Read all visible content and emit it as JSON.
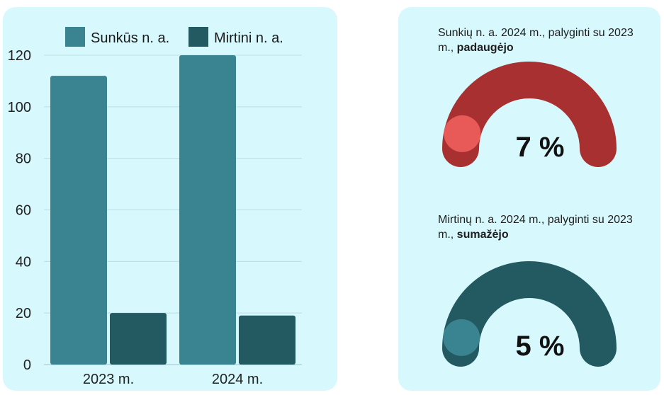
{
  "chart_data": [
    {
      "type": "bar",
      "categories": [
        "2023 m.",
        "2024 m."
      ],
      "series": [
        {
          "name": "Sunkūs n. a.",
          "values": [
            112,
            120
          ],
          "color": "#3a8390"
        },
        {
          "name": "Mirtini n. a.",
          "values": [
            20,
            19
          ],
          "color": "#235960"
        }
      ],
      "yticks": [
        "0",
        "20",
        "40",
        "60",
        "80",
        "100",
        "120"
      ],
      "ylim": [
        0,
        120
      ],
      "grid": true,
      "legend": "top"
    }
  ],
  "gauges": [
    {
      "caption_prefix": "Sunkių n. a. 2024 m., palyginti su 2023 m., ",
      "caption_bold": "padaugėjo",
      "value_label": "7 %",
      "percent": 7,
      "track_color": "#a83030",
      "knob_color": "#e85a58"
    },
    {
      "caption_prefix": "Mirtinų n. a. 2024 m., palyginti su 2023 m., ",
      "caption_bold": "sumažėjo",
      "value_label": "5 %",
      "percent": 5,
      "track_color": "#235960",
      "knob_color": "#3a8390"
    }
  ]
}
